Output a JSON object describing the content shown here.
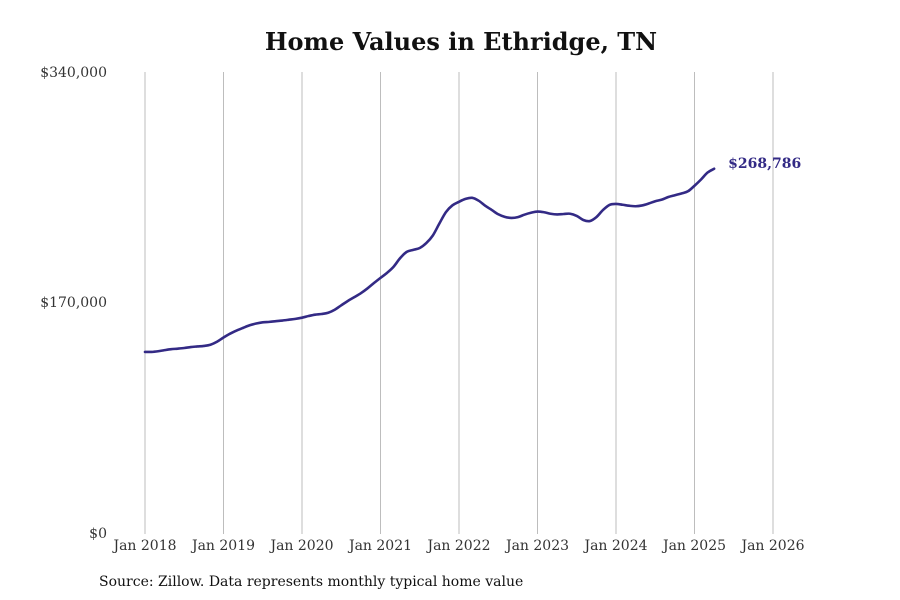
{
  "source_text": "Source: Zillow. Data represents monthly typical home value",
  "chart_data": {
    "type": "line",
    "title": "Home Values in Ethridge, TN",
    "xlabel": "",
    "ylabel": "",
    "ylim": [
      0,
      340000
    ],
    "y_ticks": [
      {
        "value": 0,
        "label": "$0"
      },
      {
        "value": 170000,
        "label": "$170,000"
      },
      {
        "value": 340000,
        "label": "$340,000"
      }
    ],
    "x_ticks": [
      "Jan 2018",
      "Jan 2019",
      "Jan 2020",
      "Jan 2021",
      "Jan 2022",
      "Jan 2023",
      "Jan 2024",
      "Jan 2025",
      "Jan 2026"
    ],
    "grid": "vertical",
    "line_color": "#332a85",
    "end_label": "$268,786",
    "series": [
      {
        "name": "Typical home value",
        "start": "Jan 2018",
        "frequency": "monthly",
        "values": [
          134000,
          134000,
          134500,
          135300,
          136000,
          136400,
          136900,
          137600,
          138000,
          138400,
          139300,
          141500,
          144600,
          147400,
          149700,
          151700,
          153600,
          154900,
          155800,
          156100,
          156600,
          157100,
          157700,
          158300,
          159200,
          160400,
          161400,
          161900,
          162800,
          165000,
          168300,
          171500,
          174300,
          177200,
          180700,
          184700,
          188500,
          192200,
          196700,
          203000,
          207600,
          209100,
          210500,
          214100,
          219700,
          228500,
          236900,
          241900,
          244500,
          246600,
          247400,
          245300,
          241600,
          238500,
          235300,
          233400,
          232600,
          233200,
          235000,
          236400,
          237300,
          236800,
          235700,
          235200,
          235500,
          235700,
          234100,
          231100,
          230300,
          233200,
          238400,
          242200,
          242900,
          242300,
          241600,
          241200,
          241800,
          243200,
          244900,
          246100,
          248000,
          249300,
          250600,
          252200,
          256300,
          260900,
          266000,
          268786
        ]
      }
    ]
  }
}
